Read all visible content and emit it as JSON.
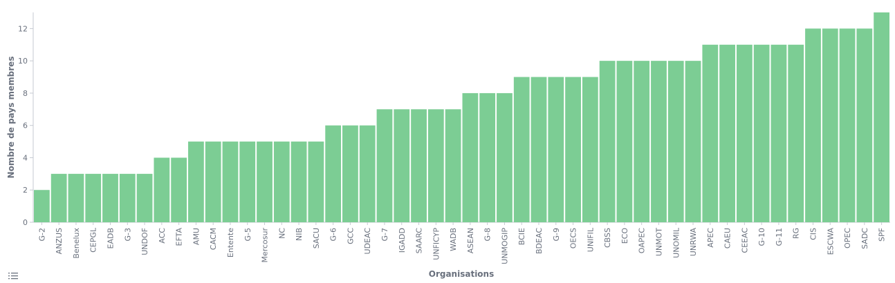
{
  "chart_data": {
    "type": "bar",
    "xlabel": "Organisations",
    "ylabel": "Nombre de pays membres",
    "ylim": [
      0,
      13
    ],
    "yticks": [
      0,
      2,
      4,
      6,
      8,
      10,
      12
    ],
    "grid": false,
    "color": "#7ccd94",
    "categories": [
      "G-2",
      "ANZUS",
      "Benelux",
      "CEPGL",
      "EADB",
      "G-3",
      "UNDOF",
      "ACC",
      "EFTA",
      "AMU",
      "CACM",
      "Entente",
      "G-5",
      "Mercosur",
      "NC",
      "NIB",
      "SACU",
      "G-6",
      "GCC",
      "UDEAC",
      "G-7",
      "IGADD",
      "SAARC",
      "UNFICYP",
      "WADB",
      "ASEAN",
      "G-8",
      "UNMOGIP",
      "BCIE",
      "BDEAC",
      "G-9",
      "OECS",
      "UNIFIL",
      "CBSS",
      "ECO",
      "OAPEC",
      "UNMOT",
      "UNOMIL",
      "UNRWA",
      "APEC",
      "CAEU",
      "CEEAC",
      "G-10",
      "G-11",
      "RG",
      "CIS",
      "ESCWA",
      "OPEC",
      "SADC",
      "SPF"
    ],
    "values": [
      2,
      3,
      3,
      3,
      3,
      3,
      3,
      4,
      4,
      5,
      5,
      5,
      5,
      5,
      5,
      5,
      5,
      6,
      6,
      6,
      7,
      7,
      7,
      7,
      7,
      8,
      8,
      8,
      9,
      9,
      9,
      9,
      9,
      10,
      10,
      10,
      10,
      10,
      10,
      11,
      11,
      11,
      11,
      11,
      11,
      12,
      12,
      12,
      12,
      13
    ]
  },
  "legend_toggle": {
    "icon": "list-icon"
  }
}
